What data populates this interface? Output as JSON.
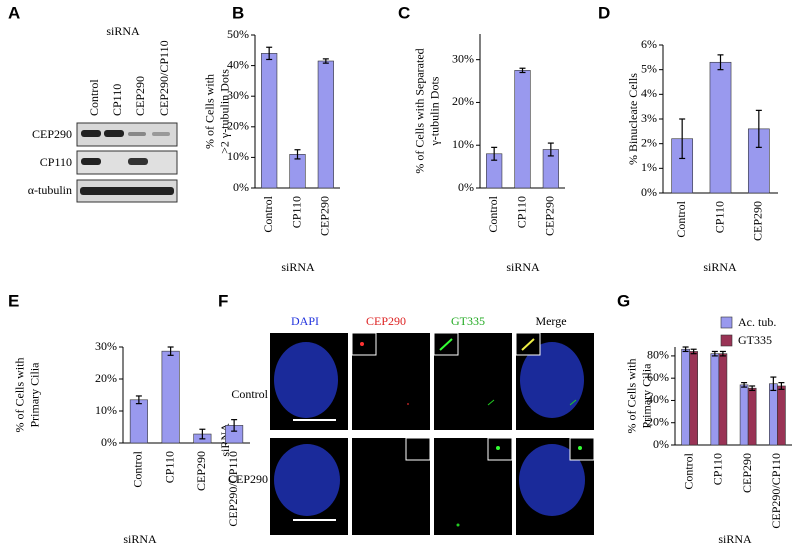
{
  "chart_data": [
    {
      "type": "bar",
      "panel": "B",
      "ylabel": [
        "% of Cells with",
        ">2 γ-tubulin Dots"
      ],
      "xlabel": "siRNA",
      "categories": [
        "Control",
        "CP110",
        "CEP290"
      ],
      "series": [
        {
          "color": "#9999ee",
          "values": [
            44,
            11,
            41.5
          ],
          "errors": [
            2,
            1.5,
            0.7
          ]
        }
      ],
      "ylim": [
        0,
        50
      ],
      "yticks": [
        {
          "value": 0,
          "label": "0%"
        },
        {
          "value": 10,
          "label": "10%"
        },
        {
          "value": 20,
          "label": "20%"
        },
        {
          "value": 30,
          "label": "30%"
        },
        {
          "value": 40,
          "label": "40%"
        },
        {
          "value": 50,
          "label": "50%"
        }
      ]
    },
    {
      "type": "bar",
      "panel": "C",
      "ylabel": [
        "% of Cells with Separated",
        "γ-tubulin Dots"
      ],
      "xlabel": "siRNA",
      "categories": [
        "Control",
        "CP110",
        "CEP290"
      ],
      "series": [
        {
          "color": "#9999ee",
          "values": [
            8,
            27.5,
            9
          ],
          "errors": [
            1.5,
            0.5,
            1.5
          ]
        }
      ],
      "ylim": [
        0,
        36
      ],
      "yticks": [
        {
          "value": 0,
          "label": "0%"
        },
        {
          "value": 10,
          "label": "10%"
        },
        {
          "value": 20,
          "label": "20%"
        },
        {
          "value": 30,
          "label": "30%"
        }
      ]
    },
    {
      "type": "bar",
      "panel": "D",
      "ylabel": [
        "% Binucleate Cells"
      ],
      "xlabel": "siRNA",
      "categories": [
        "Control",
        "CP110",
        "CEP290"
      ],
      "series": [
        {
          "color": "#9999ee",
          "values": [
            2.2,
            5.3,
            2.6
          ],
          "errors": [
            0.8,
            0.3,
            0.75
          ]
        }
      ],
      "ylim": [
        0,
        6
      ],
      "yticks": [
        {
          "value": 0,
          "label": "0%"
        },
        {
          "value": 1,
          "label": "1%"
        },
        {
          "value": 2,
          "label": "2%"
        },
        {
          "value": 3,
          "label": "3%"
        },
        {
          "value": 4,
          "label": "4%"
        },
        {
          "value": 5,
          "label": "5%"
        },
        {
          "value": 6,
          "label": "6%"
        }
      ]
    },
    {
      "type": "bar",
      "panel": "E",
      "ylabel": [
        "% of Cells with",
        "Primary Cilia"
      ],
      "xlabel": "siRNA",
      "categories": [
        "Control",
        "CP110",
        "CEP290",
        "CEP290/CP110"
      ],
      "series": [
        {
          "color": "#9999ee",
          "values": [
            13.5,
            28.7,
            2.8,
            5.5
          ],
          "errors": [
            1.2,
            1.3,
            1.5,
            1.8
          ]
        }
      ],
      "ylim": [
        0,
        30
      ],
      "yticks": [
        {
          "value": 0,
          "label": "0%"
        },
        {
          "value": 10,
          "label": "10%"
        },
        {
          "value": 20,
          "label": "20%"
        },
        {
          "value": 30,
          "label": "30%"
        }
      ]
    },
    {
      "type": "bar",
      "panel": "G",
      "ylabel": [
        "% of Cells with",
        "Primary Cilia"
      ],
      "xlabel": "siRNA",
      "categories": [
        "Control",
        "CP110",
        "CEP290",
        "CEP290/CP110"
      ],
      "series": [
        {
          "name": "Ac. tub.",
          "color": "#9999ee",
          "values": [
            86,
            82,
            54,
            55
          ],
          "errors": [
            2,
            2,
            2,
            6
          ]
        },
        {
          "name": "GT335",
          "color": "#993355",
          "values": [
            84,
            82,
            51,
            53
          ],
          "errors": [
            2,
            2,
            2,
            3
          ]
        }
      ],
      "ylim": [
        0,
        88
      ],
      "yticks": [
        {
          "value": 0,
          "label": "0%"
        },
        {
          "value": 20,
          "label": "20%"
        },
        {
          "value": 40,
          "label": "40%"
        },
        {
          "value": 60,
          "label": "60%"
        },
        {
          "value": 80,
          "label": "80%"
        }
      ]
    }
  ],
  "blot": {
    "panel": "A",
    "title": "siRNA",
    "lanes": [
      "Control",
      "CP110",
      "CEP290",
      "CEP290/CP110"
    ],
    "rows": [
      "CEP290",
      "CP110",
      "α-tubulin"
    ]
  },
  "microscopy": {
    "panel": "F",
    "columns": [
      "DAPI",
      "CEP290",
      "GT335",
      "Merge"
    ],
    "rows": [
      "Control",
      "CEP290"
    ],
    "axis_label": "siRNA"
  }
}
